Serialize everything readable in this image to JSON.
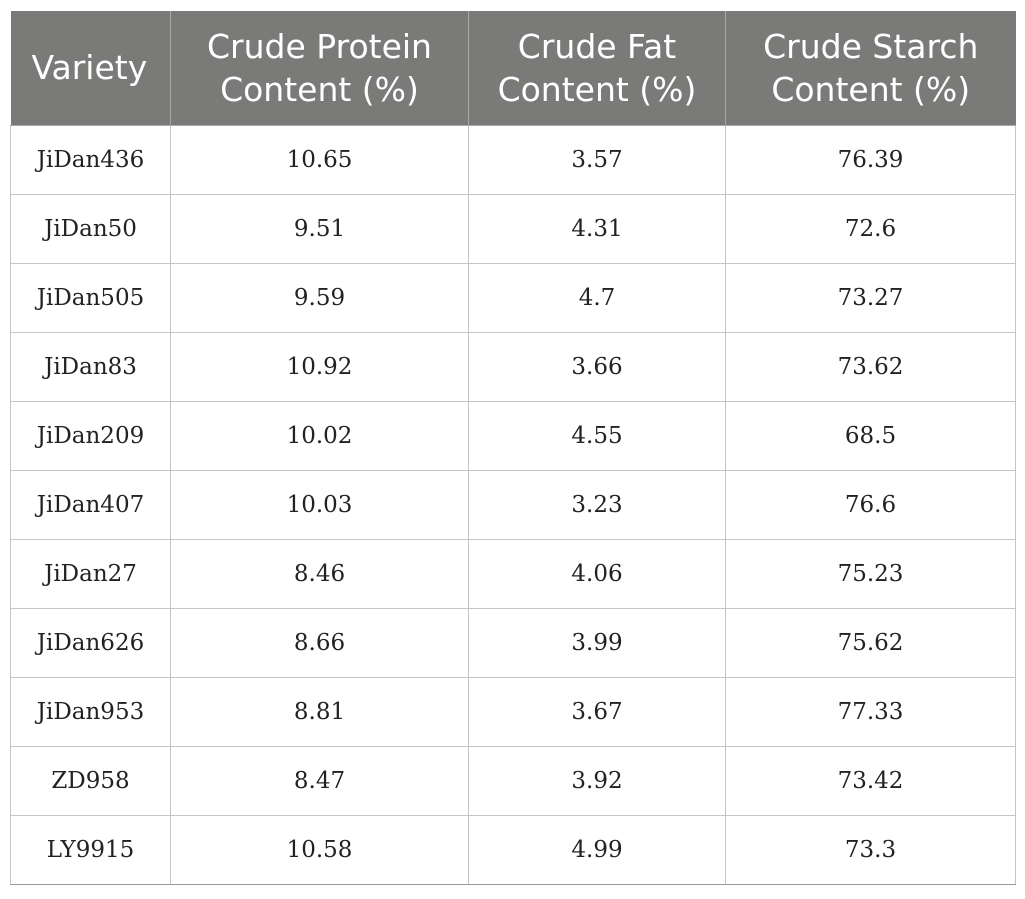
{
  "table": {
    "headers": [
      "Variety",
      "Crude Protein Content (%)",
      "Crude Fat Content (%)",
      "Crude Starch Content (%)"
    ],
    "rows": [
      [
        "JiDan436",
        "10.65",
        "3.57",
        "76.39"
      ],
      [
        "JiDan50",
        "9.51",
        "4.31",
        "72.6"
      ],
      [
        "JiDan505",
        "9.59",
        "4.7",
        "73.27"
      ],
      [
        "JiDan83",
        "10.92",
        "3.66",
        "73.62"
      ],
      [
        "JiDan209",
        "10.02",
        "4.55",
        "68.5"
      ],
      [
        "JiDan407",
        "10.03",
        "3.23",
        "76.6"
      ],
      [
        "JiDan27",
        "8.46",
        "4.06",
        "75.23"
      ],
      [
        "JiDan626",
        "8.66",
        "3.99",
        "75.62"
      ],
      [
        "JiDan953",
        "8.81",
        "3.67",
        "77.33"
      ],
      [
        "ZD958",
        "8.47",
        "3.92",
        "73.42"
      ],
      [
        "LY9915",
        "10.58",
        "4.99",
        "73.3"
      ]
    ]
  },
  "colors": {
    "header_background": "#7a7b79",
    "header_text": "#ffffff",
    "grid_line": "#c4c4c4"
  }
}
